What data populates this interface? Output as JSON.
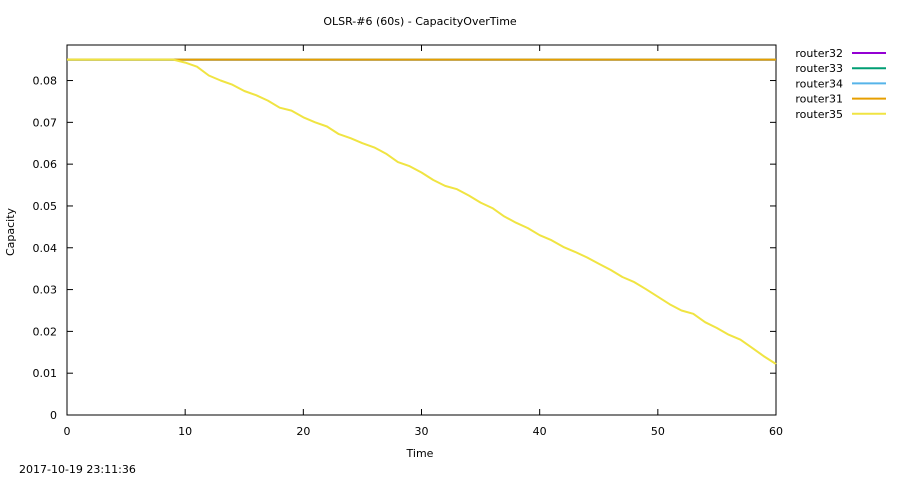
{
  "chart_data": {
    "type": "line",
    "title": "OLSR-#6 (60s) - CapacityOverTime",
    "xlabel": "Time",
    "ylabel": "Capacity",
    "xlim": [
      0,
      60
    ],
    "ylim": [
      0,
      0.0885
    ],
    "xticks": [
      0,
      10,
      20,
      30,
      40,
      50,
      60
    ],
    "yticks": [
      0,
      0.01,
      0.02,
      0.03,
      0.04,
      0.05,
      0.06,
      0.07,
      0.08
    ],
    "ytick_labels": [
      "0",
      "0.01",
      "0.02",
      "0.03",
      "0.04",
      "0.05",
      "0.06",
      "0.07",
      "0.08"
    ],
    "grid": false,
    "legend_position": "outside-top-right",
    "series": [
      {
        "name": "router32",
        "color": "#9400d3",
        "x": [
          0,
          60
        ],
        "y": [
          0.085,
          0.085
        ]
      },
      {
        "name": "router33",
        "color": "#009e73",
        "x": [
          0,
          60
        ],
        "y": [
          0.085,
          0.085
        ]
      },
      {
        "name": "router34",
        "color": "#56b4e9",
        "x": [
          0,
          60
        ],
        "y": [
          0.085,
          0.085
        ]
      },
      {
        "name": "router31",
        "color": "#e69f00",
        "x": [
          0,
          60
        ],
        "y": [
          0.085,
          0.085
        ]
      },
      {
        "name": "router35",
        "color": "#f0e442",
        "x": [
          0,
          9,
          10,
          11,
          12,
          13,
          14,
          15,
          16,
          17,
          18,
          19,
          20,
          21,
          22,
          23,
          24,
          25,
          26,
          27,
          28,
          29,
          30,
          31,
          32,
          33,
          34,
          35,
          36,
          37,
          38,
          39,
          40,
          41,
          42,
          43,
          44,
          45,
          46,
          47,
          48,
          49,
          50,
          51,
          52,
          53,
          54,
          55,
          56,
          57,
          58,
          59,
          60
        ],
        "y": [
          0.085,
          0.085,
          0.0843,
          0.0833,
          0.0812,
          0.08,
          0.079,
          0.0775,
          0.0765,
          0.0752,
          0.0735,
          0.0728,
          0.0712,
          0.07,
          0.069,
          0.0672,
          0.0662,
          0.065,
          0.064,
          0.0625,
          0.0605,
          0.0595,
          0.058,
          0.0562,
          0.0548,
          0.054,
          0.0525,
          0.0508,
          0.0495,
          0.0475,
          0.046,
          0.0447,
          0.043,
          0.0418,
          0.0402,
          0.039,
          0.0377,
          0.0362,
          0.0347,
          0.033,
          0.0318,
          0.0301,
          0.0283,
          0.0265,
          0.025,
          0.0242,
          0.0222,
          0.0208,
          0.0192,
          0.018,
          0.016,
          0.014,
          0.0122
        ]
      }
    ]
  },
  "footer": {
    "timestamp": "2017-10-19 23:11:36"
  }
}
